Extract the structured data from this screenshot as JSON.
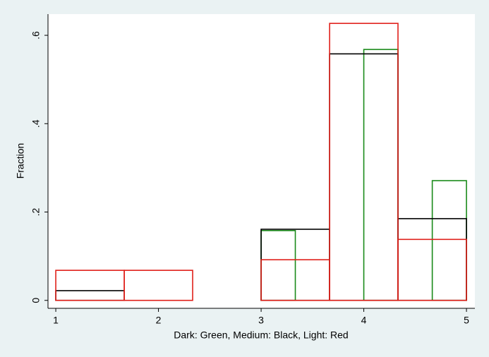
{
  "chart_data": {
    "type": "histogram",
    "xlabel": "Dark: Green, Medium: Black, Light: Red",
    "ylabel": "Fraction",
    "series": [
      {
        "name": "Dark",
        "color": "#1a8a1a",
        "bins": [
          3,
          3.333,
          3.667,
          4,
          4.333,
          4.667,
          5
        ],
        "values": [
          0.158,
          0,
          0,
          0.568,
          0,
          0.271
        ]
      },
      {
        "name": "Medium",
        "color": "#000000",
        "bins": [
          1,
          1.667,
          2.333,
          3,
          3.667,
          4.333,
          5
        ],
        "values": [
          0.022,
          0,
          0,
          0.161,
          0.558,
          0.185
        ]
      },
      {
        "name": "Light",
        "color": "#e0201a",
        "bins": [
          1,
          1.667,
          2.333,
          3,
          3.667,
          4.333,
          5
        ],
        "values": [
          0.068,
          0.068,
          0,
          0.092,
          0.627,
          0.138
        ]
      }
    ],
    "xlim": [
      0.924,
      5.082
    ],
    "ylim": [
      -0.018,
      0.648
    ],
    "xticks": [
      1,
      2,
      3,
      4,
      5
    ],
    "yticks": [
      0,
      {
        "value": 0.2,
        "label": ".2"
      },
      {
        "value": 0.4,
        "label": ".4"
      },
      {
        "value": 0.6,
        "label": ".6"
      }
    ]
  }
}
